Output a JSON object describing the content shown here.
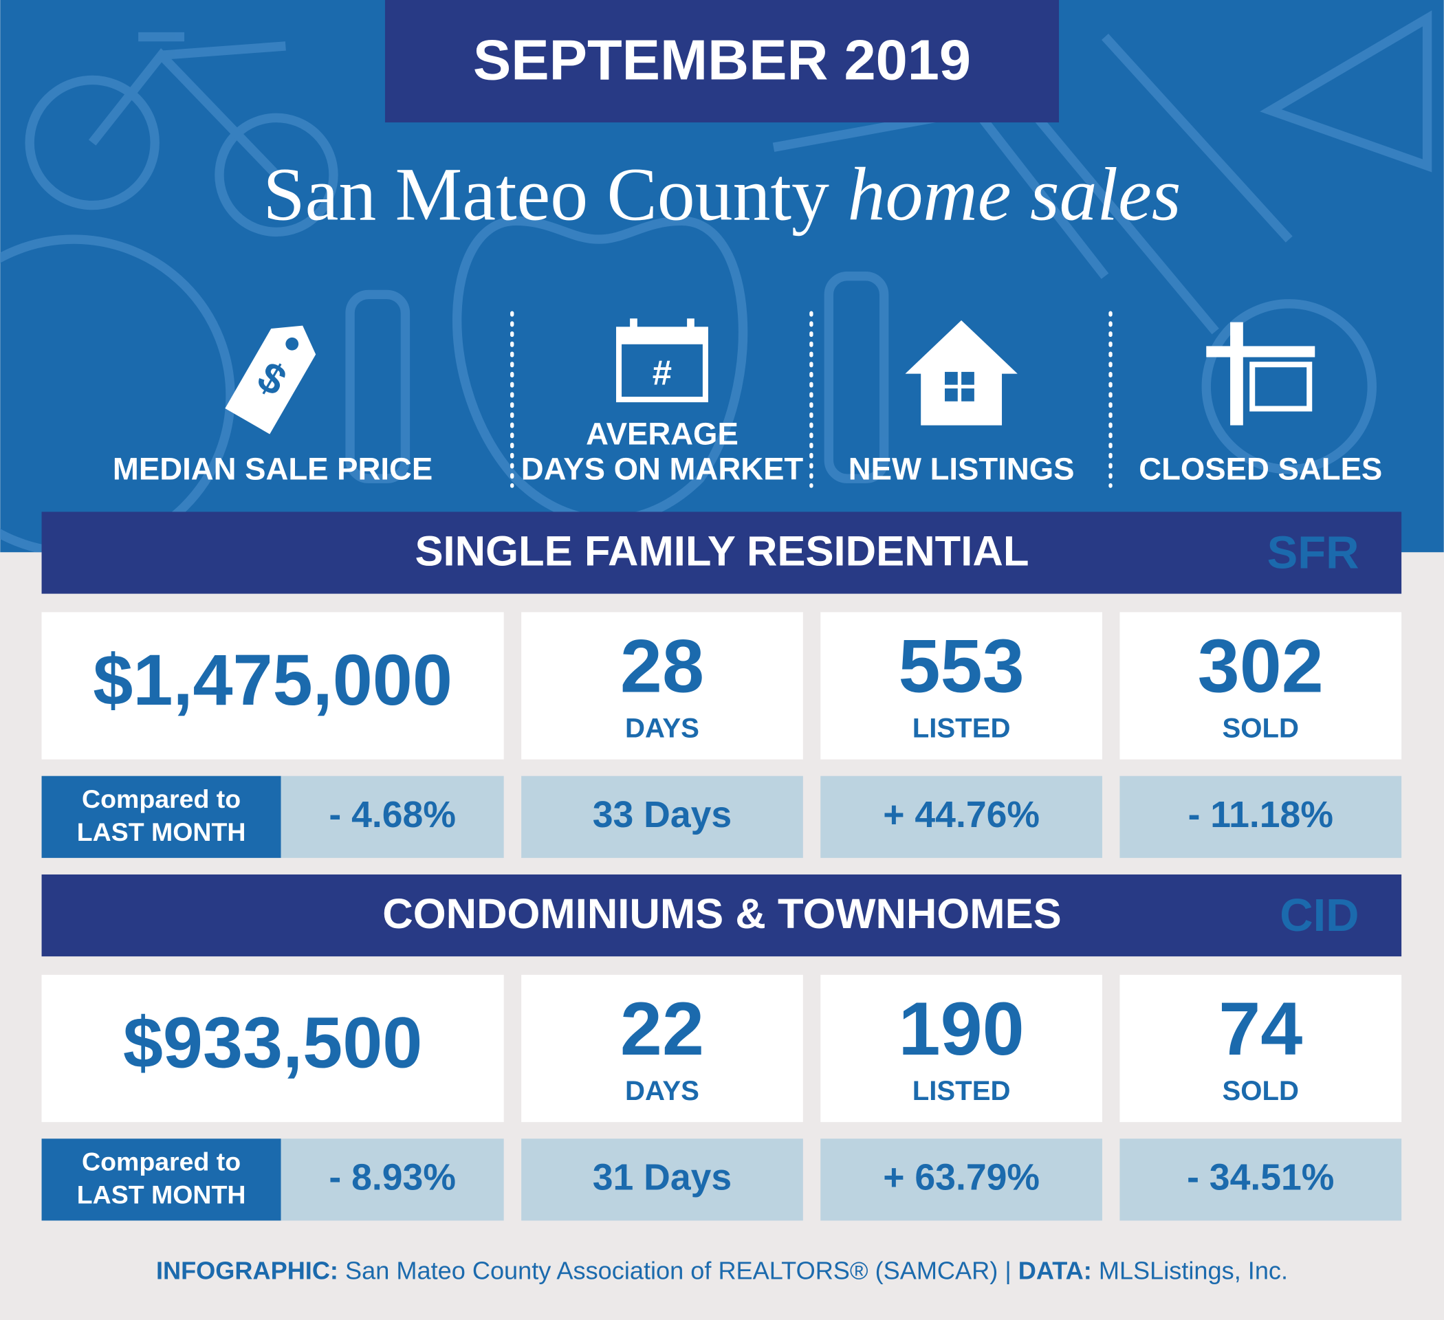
{
  "header": {
    "month": "SEPTEMBER 2019",
    "title": "San Mateo County",
    "title_italic": "home sales"
  },
  "metrics": [
    {
      "label": [
        "MEDIAN SALE PRICE"
      ]
    },
    {
      "label": [
        "AVERAGE",
        "DAYS ON MARKET"
      ]
    },
    {
      "label": [
        "NEW LISTINGS"
      ]
    },
    {
      "label": [
        "CLOSED SALES"
      ]
    }
  ],
  "icons": {
    "calendar": "#"
  },
  "sections": [
    {
      "title": "SINGLE FAMILY RESIDENTIAL",
      "code": "SFR",
      "cells": [
        {
          "value": "$1,475,000"
        },
        {
          "value": "28",
          "unit": "DAYS"
        },
        {
          "value": "553",
          "unit": "LISTED"
        },
        {
          "value": "302",
          "unit": "SOLD"
        }
      ],
      "compare_label": [
        "Compared to",
        "LAST MONTH"
      ],
      "changes": [
        "- 4.68%",
        "33 Days",
        "+ 44.76%",
        "- 11.18%"
      ]
    },
    {
      "title": "CONDOMINIUMS & TOWNHOMES",
      "code": "CID",
      "cells": [
        {
          "value": "$933,500"
        },
        {
          "value": "22",
          "unit": "DAYS"
        },
        {
          "value": "190",
          "unit": "LISTED"
        },
        {
          "value": "74",
          "unit": "SOLD"
        }
      ],
      "compare_label": [
        "Compared to",
        "LAST MONTH"
      ],
      "changes": [
        "- 8.93%",
        "31 Days",
        "+ 63.79%",
        "- 34.51%"
      ]
    }
  ],
  "footer": {
    "label1": "INFOGRAPHIC:",
    "text1": " San Mateo County Association of REALTORS® (SAMCAR) | ",
    "label2": "DATA:",
    "text2": " MLSListings, Inc."
  }
}
